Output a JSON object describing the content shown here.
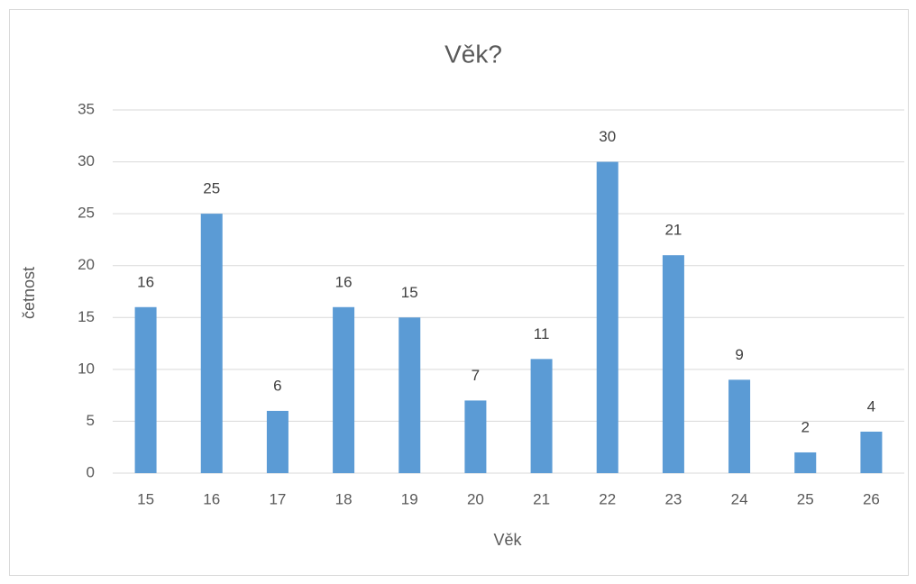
{
  "chart_data": {
    "type": "bar",
    "title": "Věk?",
    "x_label": "Věk",
    "y_label": "četnost",
    "categories": [
      "15",
      "16",
      "17",
      "18",
      "19",
      "20",
      "21",
      "22",
      "23",
      "24",
      "25",
      "26"
    ],
    "values": [
      16,
      25,
      6,
      16,
      15,
      7,
      11,
      30,
      21,
      9,
      2,
      4
    ],
    "color": "#5b9bd5",
    "ylim": [
      0,
      35
    ],
    "yticks": [
      0,
      5,
      10,
      15,
      20,
      25,
      30,
      35
    ],
    "grid": true,
    "data_labels": true
  }
}
